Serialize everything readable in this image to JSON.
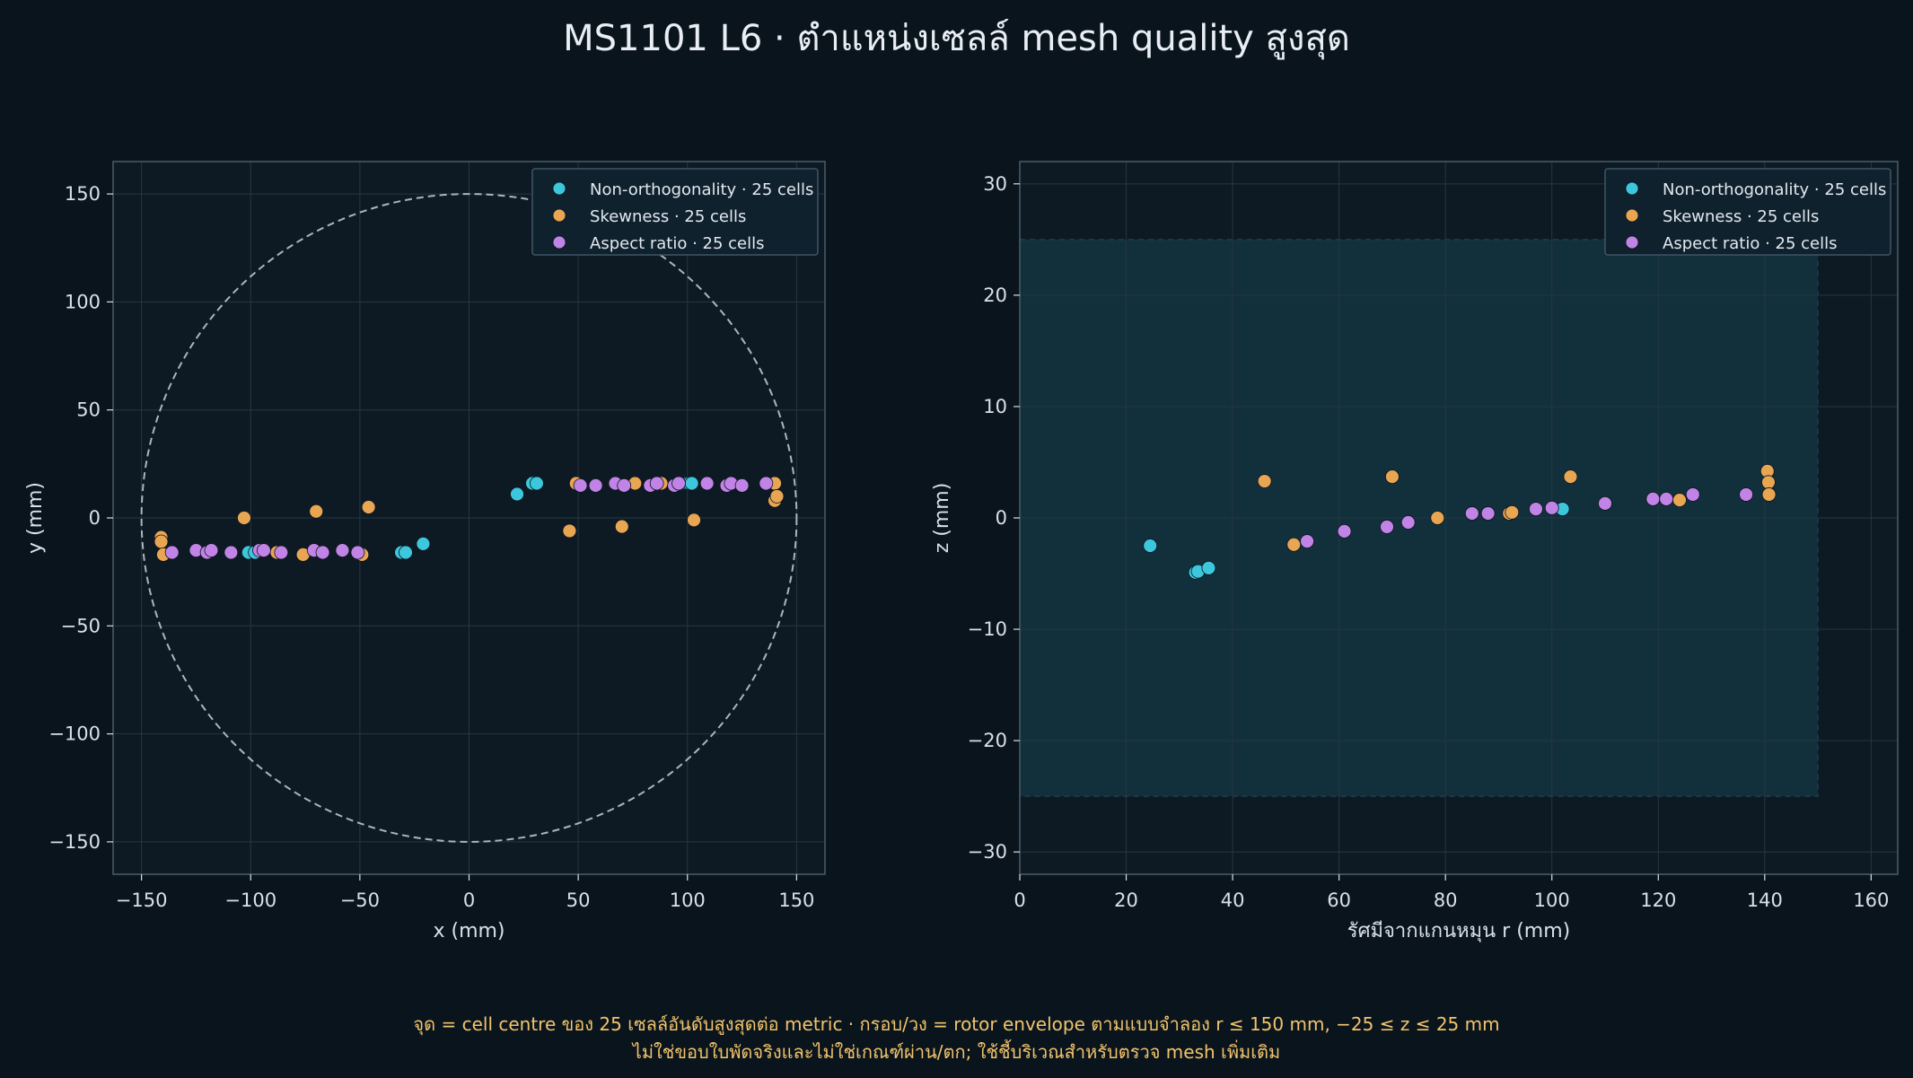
{
  "title": "MS1101 L6 · ตำแหน่งเซลล์ mesh quality สูงสุด",
  "footnote": {
    "line1": "จุด = cell centre ของ 25 เซลล์อันดับสูงสุดต่อ metric · กรอบ/วง = rotor envelope ตามแบบจำลอง r ≤ 150 mm, −25 ≤ z ≤ 25 mm",
    "line2": "ไม่ใช่ขอบใบพัดจริงและไม่ใช่เกณฑ์ผ่าน/ตก; ใช้ชี้บริเวณสำหรับตรวจ mesh เพิ่มเติม"
  },
  "colors": {
    "background": "#0a141d",
    "axes_bg": "#0d1a24",
    "grid": "#26363f",
    "spine": "#4a5d6a",
    "text": "#d8e0e8",
    "envelope_fill": "#12303b",
    "non_orthogonality": "#3cc7dd",
    "skewness": "#e8a552",
    "aspect_ratio": "#c283e6"
  },
  "chart_data": [
    {
      "type": "scatter",
      "xlabel": "x (mm)",
      "ylabel": "y (mm)",
      "xlim": [
        -163,
        163
      ],
      "ylim": [
        -165,
        165
      ],
      "xticks": [
        -150,
        -100,
        -50,
        0,
        50,
        100,
        150
      ],
      "yticks": [
        -150,
        -100,
        -50,
        0,
        50,
        100,
        150
      ],
      "xtick_labels": [
        "−150",
        "−100",
        "−50",
        "0",
        "50",
        "100",
        "150"
      ],
      "ytick_labels": [
        "−150",
        "−100",
        "−50",
        "0",
        "50",
        "100",
        "150"
      ],
      "grid": true,
      "legend_position": "top-right",
      "envelope": {
        "shape": "circle",
        "radius": 150
      },
      "series": [
        {
          "name": "Non-orthogonality · 25 cells",
          "color_key": "non_orthogonality",
          "x": [
            -101,
            -98,
            -31,
            -29,
            -21,
            22,
            29,
            31,
            100,
            101,
            102
          ],
          "y": [
            -16,
            -16,
            -16,
            -16,
            -12,
            11,
            16,
            16,
            16,
            16,
            16
          ]
        },
        {
          "name": "Skewness · 25 cells",
          "color_key": "skewness",
          "x": [
            -141,
            -141,
            -140,
            -88,
            -76,
            -70,
            -103,
            -49,
            -46,
            46,
            49,
            70,
            76,
            88,
            103,
            140,
            140,
            141
          ],
          "y": [
            -9,
            -11,
            -17,
            -16,
            -17,
            3,
            0,
            -17,
            5,
            -6,
            16,
            -4,
            16,
            16,
            -1,
            16,
            8,
            10
          ]
        },
        {
          "name": "Aspect ratio · 25 cells",
          "color_key": "aspect_ratio",
          "x": [
            -136,
            -125,
            -120,
            -118,
            -109,
            -96,
            -94,
            -86,
            -71,
            -67,
            -58,
            -51,
            51,
            58,
            67,
            71,
            83,
            86,
            94,
            96,
            109,
            118,
            120,
            125,
            136
          ],
          "y": [
            -16,
            -15,
            -16,
            -15,
            -16,
            -15,
            -15,
            -16,
            -15,
            -16,
            -15,
            -16,
            15,
            15,
            16,
            15,
            15,
            16,
            15,
            16,
            16,
            15,
            16,
            15,
            16
          ]
        }
      ]
    },
    {
      "type": "scatter",
      "xlabel": "รัศมีจากแกนหมุน r (mm)",
      "ylabel": "z (mm)",
      "xlim": [
        0,
        165
      ],
      "ylim": [
        -32,
        32
      ],
      "xticks": [
        0,
        20,
        40,
        60,
        80,
        100,
        120,
        140,
        160
      ],
      "yticks": [
        -30,
        -20,
        -10,
        0,
        10,
        20,
        30
      ],
      "xtick_labels": [
        "0",
        "20",
        "40",
        "60",
        "80",
        "100",
        "120",
        "140",
        "160"
      ],
      "ytick_labels": [
        "−30",
        "−20",
        "−10",
        "0",
        "10",
        "20",
        "30"
      ],
      "grid": true,
      "legend_position": "top-right",
      "envelope": {
        "shape": "rect",
        "r_max": 150,
        "z_min": -25,
        "z_max": 25
      },
      "series": [
        {
          "name": "Non-orthogonality · 25 cells",
          "color_key": "non_orthogonality",
          "x": [
            24.5,
            33,
            33.5,
            35.5,
            102
          ],
          "y": [
            -2.5,
            -4.9,
            -4.8,
            -4.5,
            0.8
          ]
        },
        {
          "name": "Skewness · 25 cells",
          "color_key": "skewness",
          "x": [
            46,
            51.5,
            70,
            78.5,
            92,
            92.5,
            103.5,
            124,
            140.5,
            140.7,
            140.8
          ],
          "y": [
            3.3,
            -2.4,
            3.7,
            0,
            0.4,
            0.5,
            3.7,
            1.6,
            4.2,
            3.2,
            2.1
          ]
        },
        {
          "name": "Aspect ratio · 25 cells",
          "color_key": "aspect_ratio",
          "x": [
            54,
            61,
            69,
            73,
            85,
            88,
            97,
            100,
            110,
            119,
            121.5,
            126.5,
            136.5
          ],
          "y": [
            -2.1,
            -1.2,
            -0.8,
            -0.4,
            0.4,
            0.4,
            0.8,
            0.9,
            1.3,
            1.7,
            1.7,
            2.1,
            2.1
          ]
        }
      ]
    }
  ]
}
